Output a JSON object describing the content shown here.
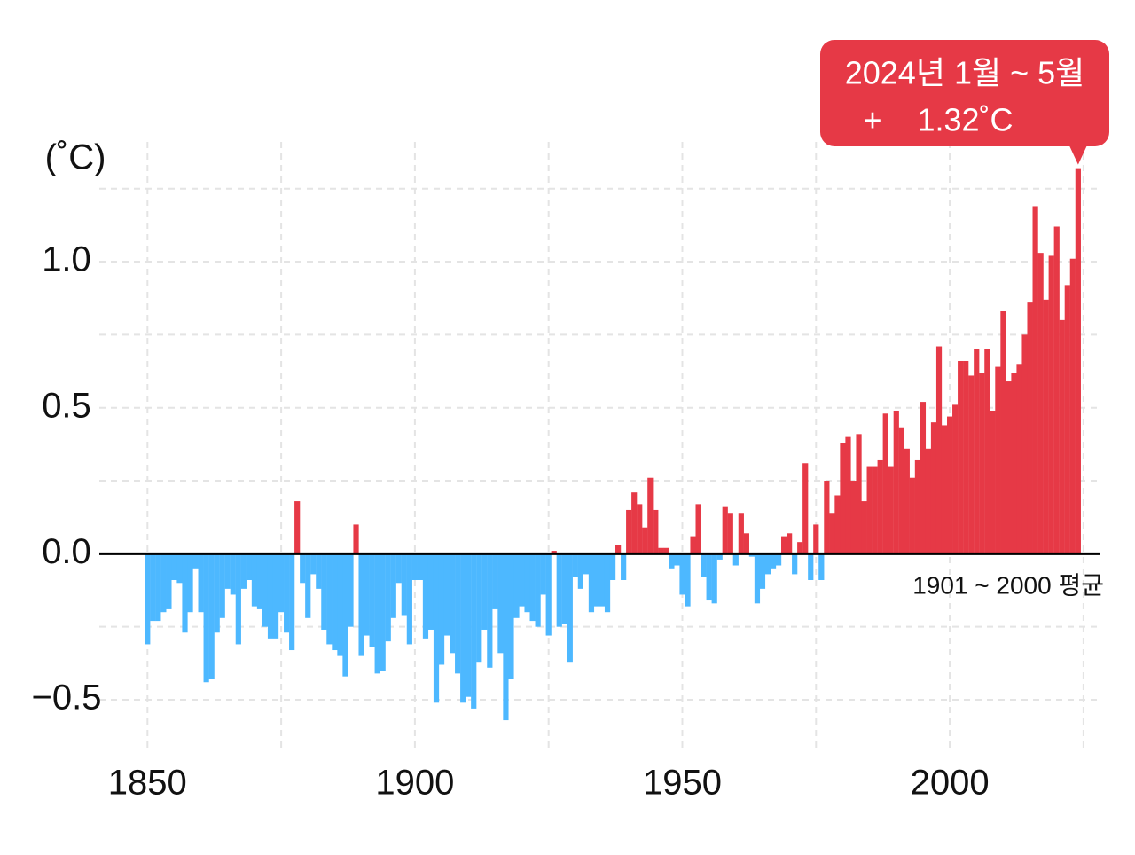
{
  "chart_data": {
    "type": "bar",
    "ylabel": "(˚C)",
    "baseline_label": "1901 ~ 2000 평균",
    "annotation": {
      "text": "2024년 1월 ~ 5월",
      "label": "+    1.32˚C"
    },
    "positive_color": "#e63946",
    "negative_color": "#4db8ff",
    "x": [
      1850,
      1851,
      1852,
      1853,
      1854,
      1855,
      1856,
      1857,
      1858,
      1859,
      1860,
      1861,
      1862,
      1863,
      1864,
      1865,
      1866,
      1867,
      1868,
      1869,
      1870,
      1871,
      1872,
      1873,
      1874,
      1875,
      1876,
      1877,
      1878,
      1879,
      1880,
      1881,
      1882,
      1883,
      1884,
      1885,
      1886,
      1887,
      1888,
      1889,
      1890,
      1891,
      1892,
      1893,
      1894,
      1895,
      1896,
      1897,
      1898,
      1899,
      1900,
      1901,
      1902,
      1903,
      1904,
      1905,
      1906,
      1907,
      1908,
      1909,
      1910,
      1911,
      1912,
      1913,
      1914,
      1915,
      1916,
      1917,
      1918,
      1919,
      1920,
      1921,
      1922,
      1923,
      1924,
      1925,
      1926,
      1927,
      1928,
      1929,
      1930,
      1931,
      1932,
      1933,
      1934,
      1935,
      1936,
      1937,
      1938,
      1939,
      1940,
      1941,
      1942,
      1943,
      1944,
      1945,
      1946,
      1947,
      1948,
      1949,
      1950,
      1951,
      1952,
      1953,
      1954,
      1955,
      1956,
      1957,
      1958,
      1959,
      1960,
      1961,
      1962,
      1963,
      1964,
      1965,
      1966,
      1967,
      1968,
      1969,
      1970,
      1971,
      1972,
      1973,
      1974,
      1975,
      1976,
      1977,
      1978,
      1979,
      1980,
      1981,
      1982,
      1983,
      1984,
      1985,
      1986,
      1987,
      1988,
      1989,
      1990,
      1991,
      1992,
      1993,
      1994,
      1995,
      1996,
      1997,
      1998,
      1999,
      2000,
      2001,
      2002,
      2003,
      2004,
      2005,
      2006,
      2007,
      2008,
      2009,
      2010,
      2011,
      2012,
      2013,
      2014,
      2015,
      2016,
      2017,
      2018,
      2019,
      2020,
      2021,
      2022,
      2023,
      2024
    ],
    "values": [
      -0.31,
      -0.23,
      -0.23,
      -0.2,
      -0.19,
      -0.09,
      -0.1,
      -0.27,
      -0.2,
      -0.05,
      -0.2,
      -0.44,
      -0.43,
      -0.27,
      -0.22,
      -0.12,
      -0.14,
      -0.31,
      -0.12,
      -0.09,
      -0.18,
      -0.19,
      -0.25,
      -0.29,
      -0.29,
      -0.2,
      -0.27,
      -0.33,
      0.18,
      -0.1,
      -0.22,
      -0.07,
      -0.12,
      -0.26,
      -0.31,
      -0.33,
      -0.35,
      -0.42,
      -0.25,
      0.1,
      -0.35,
      -0.28,
      -0.32,
      -0.41,
      -0.4,
      -0.3,
      -0.22,
      -0.1,
      -0.21,
      -0.31,
      -0.09,
      -0.09,
      -0.29,
      -0.26,
      -0.51,
      -0.38,
      -0.28,
      -0.34,
      -0.41,
      -0.51,
      -0.49,
      -0.53,
      -0.37,
      -0.26,
      -0.39,
      -0.19,
      -0.34,
      -0.57,
      -0.43,
      -0.22,
      -0.18,
      -0.2,
      -0.23,
      -0.25,
      -0.14,
      -0.28,
      0.01,
      -0.25,
      -0.24,
      -0.37,
      -0.08,
      -0.12,
      -0.07,
      -0.2,
      -0.18,
      -0.18,
      -0.2,
      -0.09,
      0.03,
      -0.09,
      0.15,
      0.21,
      0.17,
      0.09,
      0.26,
      0.15,
      0.02,
      0.02,
      -0.05,
      -0.04,
      -0.14,
      -0.18,
      0.06,
      0.17,
      -0.08,
      -0.16,
      -0.17,
      -0.02,
      0.16,
      0.14,
      -0.04,
      0.14,
      0.07,
      -0.01,
      -0.17,
      -0.12,
      -0.07,
      -0.05,
      -0.04,
      0.06,
      0.07,
      -0.07,
      0.04,
      0.31,
      -0.09,
      0.1,
      -0.09,
      0.25,
      0.14,
      0.2,
      0.38,
      0.4,
      0.25,
      0.41,
      0.18,
      0.3,
      0.3,
      0.32,
      0.48,
      0.3,
      0.49,
      0.43,
      0.36,
      0.26,
      0.32,
      0.52,
      0.36,
      0.45,
      0.71,
      0.44,
      0.47,
      0.51,
      0.66,
      0.66,
      0.61,
      0.7,
      0.62,
      0.7,
      0.49,
      0.64,
      0.83,
      0.59,
      0.62,
      0.65,
      0.75,
      0.86,
      1.19,
      1.03,
      0.87,
      1.02,
      1.12,
      0.8,
      0.92,
      1.01,
      1.32
    ],
    "xlim": [
      1841,
      2028
    ],
    "xticks": [
      1850,
      1900,
      1950,
      2000
    ],
    "xgrid": [
      1850,
      1875,
      1900,
      1925,
      1950,
      1975,
      2000,
      2025
    ],
    "ylim": [
      -0.67,
      1.41
    ],
    "yticks": [
      {
        "value": -0.5,
        "label": "−0.5"
      },
      {
        "value": 0,
        "label": "0.0"
      },
      0.5,
      {
        "value": 1,
        "label": "1.0"
      }
    ],
    "ygrid": [
      -0.5,
      -0.25,
      0.25,
      0.5,
      0.75,
      1.0,
      1.25
    ],
    "grid": true
  }
}
